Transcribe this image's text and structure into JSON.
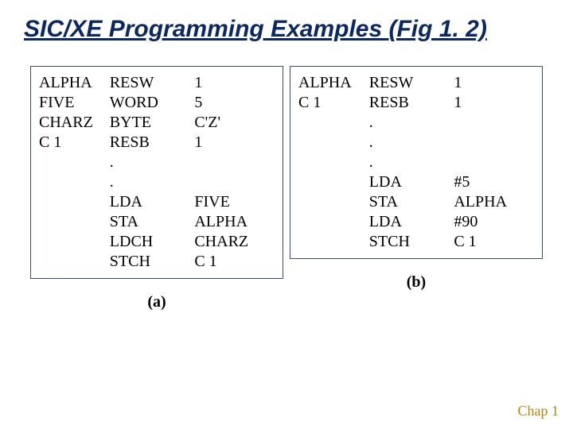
{
  "title_line1": "SIC/XE Programming Examples ",
  "title_line2": "(Fig 1. 2)",
  "boxA": {
    "label": "(a)",
    "rows": [
      {
        "c1": "ALPHA",
        "c2": "RESW",
        "c3": "1"
      },
      {
        "c1": "FIVE",
        "c2": "WORD",
        "c3": "5"
      },
      {
        "c1": "CHARZ",
        "c2": "BYTE",
        "c3": "C'Z'"
      },
      {
        "c1": "C 1",
        "c2": "RESB",
        "c3": "1"
      },
      {
        "c1": "",
        "c2": ".",
        "c3": ""
      },
      {
        "c1": "",
        "c2": ".",
        "c3": ""
      },
      {
        "c1": "",
        "c2": "LDA",
        "c3": "FIVE"
      },
      {
        "c1": "",
        "c2": "STA",
        "c3": "ALPHA"
      },
      {
        "c1": "",
        "c2": "LDCH",
        "c3": "CHARZ"
      },
      {
        "c1": "",
        "c2": "STCH",
        "c3": "C 1"
      }
    ]
  },
  "boxB": {
    "label": "(b)",
    "rows": [
      {
        "c1": "ALPHA",
        "c2": "RESW",
        "c3": "1"
      },
      {
        "c1": "C 1",
        "c2": "RESB",
        "c3": "1"
      },
      {
        "c1": "",
        "c2": ".",
        "c3": ""
      },
      {
        "c1": "",
        "c2": ".",
        "c3": ""
      },
      {
        "c1": "",
        "c2": ".",
        "c3": ""
      },
      {
        "c1": "",
        "c2": "LDA",
        "c3": "#5"
      },
      {
        "c1": "",
        "c2": "STA",
        "c3": "ALPHA"
      },
      {
        "c1": "",
        "c2": "LDA",
        "c3": "#90"
      },
      {
        "c1": "",
        "c2": "STCH",
        "c3": "C 1"
      }
    ]
  },
  "footer": "Chap 1",
  "colors": {
    "title": "#0a2864",
    "border": "#3a4a7a",
    "footer": "#b8860b"
  }
}
